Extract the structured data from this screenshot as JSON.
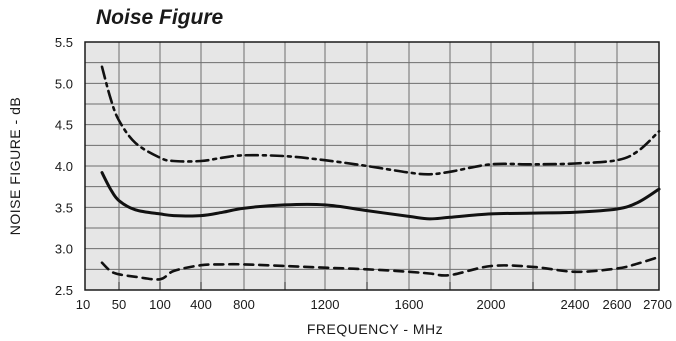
{
  "chart_data": {
    "type": "line",
    "title": "Noise Figure",
    "xlabel": "FREQUENCY - MHz",
    "ylabel": "NOISE FIGURE - dB",
    "x_tick_labels": [
      "10",
      "50",
      "100",
      "400",
      "800",
      "1200",
      "1600",
      "2000",
      "2400",
      "2600",
      "2700"
    ],
    "ylim": [
      2.5,
      5.5
    ],
    "y_ticks": [
      2.5,
      3.0,
      3.5,
      4.0,
      4.5,
      5.0,
      5.5
    ],
    "y_tick_labels": [
      "2.5",
      "3.0",
      "3.5",
      "4.0",
      "4.5",
      "5.0",
      "5.5"
    ],
    "grid": true,
    "legend": "none",
    "x_scale_note": "non-uniform axis: 10-100 compressed, 100-2700 segments",
    "series": [
      {
        "style": "dash-dot",
        "x": [
          30,
          40,
          50,
          70,
          100,
          200,
          400,
          600,
          800,
          1000,
          1200,
          1400,
          1600,
          1700,
          1800,
          2000,
          2200,
          2400,
          2600,
          2650,
          2700
        ],
        "y": [
          5.2,
          4.82,
          4.55,
          4.28,
          4.1,
          4.06,
          4.06,
          4.1,
          4.13,
          4.12,
          4.07,
          4.0,
          3.92,
          3.9,
          3.93,
          4.02,
          4.02,
          4.03,
          4.07,
          4.18,
          4.42
        ]
      },
      {
        "style": "solid",
        "x": [
          30,
          40,
          50,
          70,
          100,
          200,
          400,
          600,
          800,
          1000,
          1200,
          1400,
          1600,
          1700,
          1800,
          2000,
          2200,
          2400,
          2600,
          2650,
          2700
        ],
        "y": [
          3.92,
          3.72,
          3.58,
          3.47,
          3.42,
          3.4,
          3.4,
          3.44,
          3.49,
          3.53,
          3.53,
          3.46,
          3.39,
          3.36,
          3.38,
          3.42,
          3.43,
          3.44,
          3.48,
          3.56,
          3.72
        ]
      },
      {
        "style": "dashed",
        "x": [
          30,
          40,
          50,
          70,
          100,
          200,
          400,
          600,
          800,
          1000,
          1200,
          1400,
          1600,
          1700,
          1800,
          2000,
          2200,
          2400,
          2600,
          2650,
          2700
        ],
        "y": [
          2.83,
          2.73,
          2.69,
          2.66,
          2.63,
          2.73,
          2.8,
          2.81,
          2.81,
          2.79,
          2.77,
          2.75,
          2.72,
          2.7,
          2.68,
          2.79,
          2.78,
          2.72,
          2.76,
          2.82,
          2.9
        ]
      }
    ]
  }
}
